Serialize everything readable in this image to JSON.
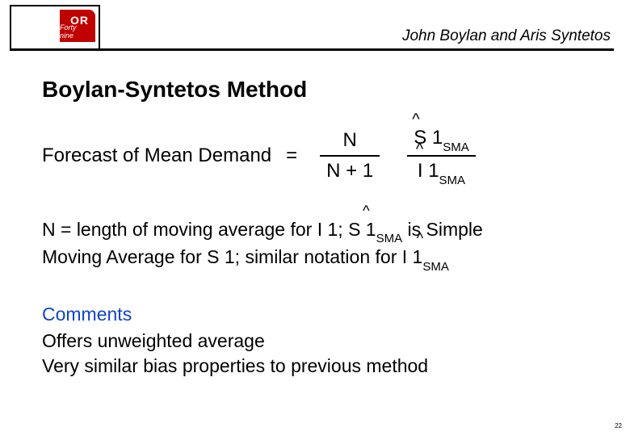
{
  "header": {
    "logo_top": "OR",
    "logo_sub": "Forty nine",
    "authors": "John Boylan and Aris Syntetos"
  },
  "title": "Boylan-Syntetos Method",
  "formula": {
    "lhs": "Forecast of Mean Demand",
    "eq": "=",
    "frac1": {
      "num": "N",
      "den": "N + 1"
    },
    "frac2": {
      "num_main": "S 1",
      "num_sub": "SMA",
      "den_main": "I 1",
      "den_sub": "SMA"
    },
    "hat_symbol": "^"
  },
  "explain": {
    "line1_a": "N = length of moving average for I 1; ",
    "line1_hat_main": "S 1",
    "line1_hat_sub": "SMA",
    "line1_b": " is Simple",
    "line2_a": "Moving Average for S 1; similar notation for ",
    "line2_hat_main": "I 1",
    "line2_hat_sub": "SMA"
  },
  "comments": {
    "heading": "Comments",
    "l1": "Offers unweighted average",
    "l2": "Very similar bias properties to previous method"
  },
  "page_number": "22",
  "colors": {
    "accent_red": "#c10000",
    "link_blue": "#1144cc",
    "text": "#000000",
    "bg": "#ffffff"
  }
}
